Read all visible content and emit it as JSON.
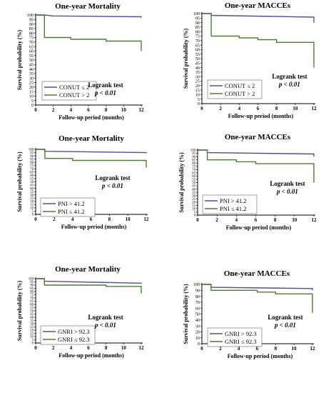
{
  "colors": {
    "blue": "#54508c",
    "green": "#4a7f34",
    "axis": "#000000"
  },
  "chart_data": [
    {
      "type": "line",
      "title": "One-year Mortality",
      "xlabel": "Follow-up period (months)",
      "ylabel": "Survival probability (%)",
      "xlim": [
        0,
        12
      ],
      "ylim": [
        0,
        100
      ],
      "x_ticks": [
        "0",
        "2",
        "4",
        "6",
        "8",
        "10",
        "12"
      ],
      "y_ticks": [
        "0",
        "5",
        "10",
        "15",
        "20",
        "25",
        "30",
        "35",
        "40",
        "45",
        "50",
        "55",
        "60",
        "65",
        "70",
        "75",
        "80",
        "85",
        "90",
        "95",
        "100"
      ],
      "legend_position": "bottom-left",
      "test_label": "Logrank test",
      "p_value": "p < 0.01",
      "series": [
        {
          "name": "CONUT ≤ 2",
          "color": "#54508c",
          "x": [
            0,
            1,
            2,
            12,
            12
          ],
          "y": [
            100,
            100,
            99,
            98,
            97
          ]
        },
        {
          "name": "CONUT > 2",
          "color": "#4a7f34",
          "x": [
            0,
            1,
            1,
            4,
            4,
            8,
            8,
            12,
            12
          ],
          "y": [
            100,
            100,
            75,
            75,
            73,
            73,
            71,
            71,
            60
          ]
        }
      ]
    },
    {
      "type": "line",
      "title": "One-year MACCEs",
      "xlabel": "Follow-up period (months)",
      "ylabel": "Survival probability (%)",
      "xlim": [
        0,
        12
      ],
      "ylim": [
        0,
        100
      ],
      "x_ticks": [
        "0",
        "2",
        "4",
        "6",
        "8",
        "10",
        "12"
      ],
      "y_ticks": [
        "0",
        "5",
        "10",
        "15",
        "20",
        "25",
        "30",
        "35",
        "40",
        "45",
        "50",
        "55",
        "60",
        "65",
        "70",
        "75",
        "80",
        "85",
        "90",
        "95",
        "100"
      ],
      "legend_position": "bottom-left",
      "test_label": "Logrank test",
      "p_value": "p < 0.01",
      "series": [
        {
          "name": "CONUT ≤ 2",
          "color": "#54508c",
          "x": [
            0,
            1,
            1,
            12,
            12
          ],
          "y": [
            100,
            100,
            98,
            96,
            90
          ]
        },
        {
          "name": "CONUT > 2",
          "color": "#4a7f34",
          "x": [
            0,
            1,
            1,
            4,
            4,
            6,
            6,
            8,
            8,
            12,
            12
          ],
          "y": [
            100,
            100,
            75,
            75,
            73,
            73,
            71,
            71,
            68,
            68,
            40
          ]
        }
      ]
    },
    {
      "type": "line",
      "title": "One-year Mortality",
      "xlabel": "Follow-up period (months)",
      "ylabel": "Survival probability (%)",
      "xlim": [
        0,
        12
      ],
      "ylim": [
        0,
        100
      ],
      "x_ticks": [
        "0",
        "2",
        "4",
        "6",
        "8",
        "10",
        "12"
      ],
      "y_ticks": [
        "0",
        "5",
        "10",
        "15",
        "20",
        "25",
        "30",
        "35",
        "40",
        "45",
        "50",
        "55",
        "60",
        "65",
        "70",
        "75",
        "80",
        "85",
        "90",
        "95",
        "100"
      ],
      "legend_position": "bottom-left",
      "test_label": "Logrank test",
      "p_value": "p < 0.01",
      "series": [
        {
          "name": "PNI > 41.2",
          "color": "#54508c",
          "x": [
            0,
            1,
            1,
            12,
            12
          ],
          "y": [
            100,
            100,
            97,
            95,
            94
          ]
        },
        {
          "name": "PNI ≤ 41.2",
          "color": "#4a7f34",
          "x": [
            0,
            1,
            1,
            4,
            4,
            12,
            12
          ],
          "y": [
            100,
            100,
            86,
            86,
            83,
            83,
            72
          ]
        }
      ]
    },
    {
      "type": "line",
      "title": "One-year MACCEs",
      "xlabel": "Follow-up period (months)",
      "ylabel": "Survival probability (%)",
      "xlim": [
        0,
        12
      ],
      "ylim": [
        0,
        100
      ],
      "x_ticks": [
        "0",
        "2",
        "4",
        "6",
        "8",
        "10",
        "12"
      ],
      "y_ticks": [
        "0",
        "5",
        "10",
        "15",
        "20",
        "25",
        "30",
        "35",
        "40",
        "45",
        "50",
        "55",
        "60",
        "65",
        "70",
        "75",
        "80",
        "85",
        "90",
        "95",
        "100"
      ],
      "legend_position": "bottom-left",
      "test_label": "Logrank test",
      "p_value": "p < 0.01",
      "series": [
        {
          "name": "PNI > 41.2",
          "color": "#54508c",
          "x": [
            0,
            1,
            1,
            12,
            12
          ],
          "y": [
            100,
            100,
            96,
            94,
            90
          ]
        },
        {
          "name": "PNI ≤ 41.2",
          "color": "#4a7f34",
          "x": [
            0,
            1,
            1,
            4,
            4,
            6,
            6,
            12,
            12
          ],
          "y": [
            100,
            100,
            85,
            85,
            82,
            82,
            79,
            79,
            50
          ]
        }
      ]
    },
    {
      "type": "line",
      "title": "One-year Mortality",
      "xlabel": "Follow-up period (months)",
      "ylabel": "Survival probability (%)",
      "xlim": [
        0,
        12
      ],
      "ylim": [
        0,
        100
      ],
      "x_ticks": [
        "0",
        "2",
        "4",
        "6",
        "8",
        "10",
        "12"
      ],
      "y_ticks": [
        "0",
        "5",
        "10",
        "15",
        "20",
        "25",
        "30",
        "35",
        "40",
        "45",
        "50",
        "55",
        "60",
        "65",
        "70",
        "75",
        "80",
        "85",
        "90",
        "95",
        "100"
      ],
      "legend_position": "bottom-left",
      "test_label": "Logrank test",
      "p_value": "p < 0.01",
      "series": [
        {
          "name": "GNRI > 92.3",
          "color": "#54508c",
          "x": [
            0,
            1,
            1,
            12,
            12
          ],
          "y": [
            100,
            100,
            96,
            93,
            92
          ]
        },
        {
          "name": "GNRI ≤ 92.3",
          "color": "#4a7f34",
          "x": [
            0,
            1,
            1,
            8,
            8,
            12,
            12
          ],
          "y": [
            100,
            100,
            90,
            90,
            88,
            88,
            77
          ]
        }
      ]
    },
    {
      "type": "line",
      "title": "One-year MACCEs",
      "xlabel": "Follow-up period (months)",
      "ylabel": "Survival probability (%)",
      "xlim": [
        0,
        12
      ],
      "ylim": [
        0,
        100
      ],
      "x_ticks": [
        "0",
        "2",
        "4",
        "6",
        "8",
        "10",
        "12"
      ],
      "y_ticks": [
        "0",
        "10",
        "20",
        "30",
        "40",
        "50",
        "60",
        "70",
        "80",
        "90",
        "100"
      ],
      "legend_position": "bottom-left",
      "test_label": "Logrank test",
      "p_value": "p < 0.01",
      "series": [
        {
          "name": "GNRI > 92.3",
          "color": "#54508c",
          "x": [
            0,
            1,
            1,
            12,
            12
          ],
          "y": [
            100,
            100,
            95,
            93,
            90
          ]
        },
        {
          "name": "GNRI ≤ 92.3",
          "color": "#4a7f34",
          "x": [
            0,
            1,
            1,
            6,
            6,
            8,
            8,
            12,
            12
          ],
          "y": [
            100,
            100,
            90,
            90,
            87,
            87,
            84,
            84,
            52
          ]
        }
      ]
    }
  ]
}
